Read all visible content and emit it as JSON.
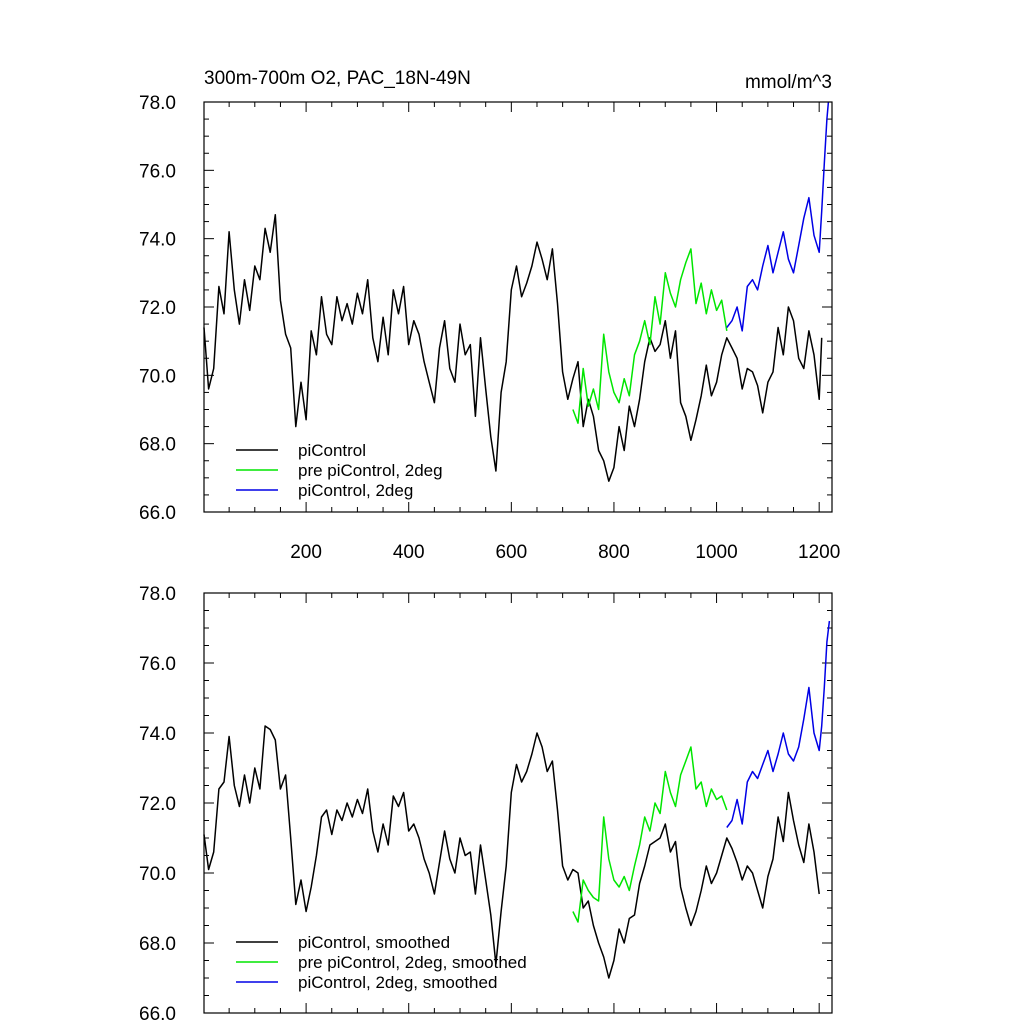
{
  "colors": {
    "piControl": "#000000",
    "pre_piControl_2deg": "#00e600",
    "piControl_2deg": "#0000e6"
  },
  "chart_data": [
    {
      "type": "line",
      "title": "300m-700m O2, PAC_18N-49N",
      "units": "mmol/m^3",
      "xlim": [
        1,
        1225
      ],
      "ylim": [
        66.0,
        78.0
      ],
      "x_ticks": [
        200,
        400,
        600,
        800,
        1000,
        1200
      ],
      "x_tick_labels": [
        "200",
        "400",
        "600",
        "800",
        "1000",
        "1200"
      ],
      "y_ticks": [
        66.0,
        68.0,
        70.0,
        72.0,
        74.0,
        76.0,
        78.0
      ],
      "y_tick_labels": [
        "66.0",
        "68.0",
        "70.0",
        "72.0",
        "74.0",
        "76.0",
        "78.0"
      ],
      "legend": [
        "piControl",
        "pre piControl, 2deg",
        "piControl, 2deg"
      ],
      "series": [
        {
          "name": "piControl",
          "color": "#000000",
          "x": [
            1,
            10,
            20,
            30,
            40,
            50,
            60,
            70,
            80,
            90,
            100,
            110,
            120,
            130,
            140,
            150,
            160,
            170,
            180,
            190,
            200,
            210,
            220,
            230,
            240,
            250,
            260,
            270,
            280,
            290,
            300,
            310,
            320,
            330,
            340,
            350,
            360,
            370,
            380,
            390,
            400,
            410,
            420,
            430,
            440,
            450,
            460,
            470,
            480,
            490,
            500,
            510,
            520,
            530,
            540,
            550,
            560,
            570,
            580,
            590,
            600,
            610,
            620,
            630,
            640,
            650,
            660,
            670,
            680,
            690,
            700,
            710,
            720,
            730,
            740,
            750,
            760,
            770,
            780,
            790,
            800,
            810,
            820,
            830,
            840,
            850,
            860,
            870,
            880,
            890,
            900,
            910,
            920,
            930,
            940,
            950,
            960,
            970,
            980,
            990,
            1000,
            1010,
            1020,
            1030,
            1040,
            1050,
            1060,
            1070,
            1080,
            1090,
            1100,
            1110,
            1120,
            1130,
            1140,
            1150,
            1160,
            1170,
            1180,
            1190,
            1200,
            1205
          ],
          "y": [
            71.4,
            69.6,
            70.2,
            72.6,
            71.8,
            74.2,
            72.5,
            71.5,
            72.8,
            71.9,
            73.2,
            72.8,
            74.3,
            73.6,
            74.7,
            72.2,
            71.2,
            70.8,
            68.5,
            69.8,
            68.7,
            71.3,
            70.6,
            72.3,
            71.2,
            70.9,
            72.3,
            71.6,
            72.1,
            71.5,
            72.4,
            71.8,
            72.8,
            71.1,
            70.4,
            71.7,
            70.6,
            72.5,
            71.8,
            72.6,
            70.9,
            71.6,
            71.2,
            70.4,
            69.8,
            69.2,
            70.8,
            71.6,
            70.2,
            69.8,
            71.5,
            70.6,
            70.9,
            68.8,
            71.1,
            69.6,
            68.2,
            67.2,
            69.5,
            70.4,
            72.5,
            73.2,
            72.3,
            72.7,
            73.2,
            73.9,
            73.4,
            72.8,
            73.7,
            72.1,
            70.1,
            69.3,
            69.9,
            70.4,
            68.5,
            69.3,
            68.8,
            67.8,
            67.5,
            66.9,
            67.3,
            68.5,
            67.8,
            69.1,
            68.5,
            69.3,
            70.4,
            71.1,
            70.7,
            70.9,
            71.6,
            70.5,
            71.3,
            69.2,
            68.8,
            68.1,
            68.7,
            69.4,
            70.3,
            69.4,
            69.8,
            70.6,
            71.1,
            70.8,
            70.5,
            69.6,
            70.2,
            70.1,
            69.7,
            68.9,
            69.8,
            70.1,
            71.4,
            70.6,
            72.0,
            71.6,
            70.5,
            70.2,
            71.3,
            70.6,
            69.3,
            71.1
          ]
        },
        {
          "name": "pre piControl, 2deg",
          "color": "#00e600",
          "x": [
            720,
            730,
            740,
            750,
            760,
            770,
            780,
            790,
            800,
            810,
            820,
            830,
            840,
            850,
            860,
            870,
            880,
            890,
            900,
            910,
            920,
            930,
            940,
            950,
            960,
            970,
            980,
            990,
            1000,
            1010,
            1020
          ],
          "y": [
            69.0,
            68.6,
            70.2,
            69.1,
            69.6,
            69.0,
            71.2,
            70.1,
            69.5,
            69.2,
            69.9,
            69.4,
            70.6,
            71.0,
            71.6,
            70.9,
            72.3,
            71.5,
            73.0,
            72.4,
            72.0,
            72.8,
            73.3,
            73.7,
            72.1,
            72.7,
            71.8,
            72.5,
            71.9,
            72.2,
            71.3
          ]
        },
        {
          "name": "piControl, 2deg",
          "color": "#0000e6",
          "x": [
            1020,
            1030,
            1040,
            1050,
            1060,
            1070,
            1080,
            1090,
            1100,
            1110,
            1120,
            1130,
            1140,
            1150,
            1160,
            1170,
            1180,
            1190,
            1200,
            1205,
            1210,
            1215,
            1218
          ],
          "y": [
            71.4,
            71.6,
            72.0,
            71.3,
            72.6,
            72.8,
            72.5,
            73.2,
            73.8,
            73.0,
            73.6,
            74.2,
            73.4,
            73.0,
            73.8,
            74.6,
            75.2,
            74.1,
            73.6,
            74.8,
            76.2,
            77.5,
            78.0
          ]
        }
      ]
    },
    {
      "type": "line",
      "xlim": [
        1,
        1225
      ],
      "ylim": [
        66.0,
        78.0
      ],
      "y_ticks": [
        66.0,
        68.0,
        70.0,
        72.0,
        74.0,
        76.0,
        78.0
      ],
      "y_tick_labels": [
        "66.0",
        "68.0",
        "70.0",
        "72.0",
        "74.0",
        "76.0",
        "78.0"
      ],
      "legend": [
        "piControl, smoothed",
        "pre piControl, 2deg, smoothed",
        "piControl, 2deg, smoothed"
      ],
      "series": [
        {
          "name": "piControl, smoothed",
          "color": "#000000",
          "x": [
            1,
            10,
            20,
            30,
            40,
            50,
            60,
            70,
            80,
            90,
            100,
            110,
            120,
            130,
            140,
            150,
            160,
            170,
            180,
            190,
            200,
            210,
            220,
            230,
            240,
            250,
            260,
            270,
            280,
            290,
            300,
            310,
            320,
            330,
            340,
            350,
            360,
            370,
            380,
            390,
            400,
            410,
            420,
            430,
            440,
            450,
            460,
            470,
            480,
            490,
            500,
            510,
            520,
            530,
            540,
            550,
            560,
            570,
            580,
            590,
            600,
            610,
            620,
            630,
            640,
            650,
            660,
            670,
            680,
            690,
            700,
            710,
            720,
            730,
            740,
            750,
            760,
            770,
            780,
            790,
            800,
            810,
            820,
            830,
            840,
            850,
            860,
            870,
            880,
            890,
            900,
            910,
            920,
            930,
            940,
            950,
            960,
            970,
            980,
            990,
            1000,
            1010,
            1020,
            1030,
            1040,
            1050,
            1060,
            1070,
            1080,
            1090,
            1100,
            1110,
            1120,
            1130,
            1140,
            1150,
            1160,
            1170,
            1180,
            1190,
            1200
          ],
          "y": [
            71.1,
            70.1,
            70.6,
            72.4,
            72.6,
            73.9,
            72.5,
            71.9,
            72.8,
            72.0,
            73.0,
            72.4,
            74.2,
            74.1,
            73.8,
            72.4,
            72.8,
            71.0,
            69.1,
            69.8,
            68.9,
            69.6,
            70.5,
            71.6,
            71.8,
            71.1,
            71.8,
            71.5,
            72.0,
            71.6,
            72.1,
            71.7,
            72.4,
            71.2,
            70.6,
            71.4,
            70.8,
            72.2,
            71.9,
            72.3,
            71.2,
            71.4,
            71.0,
            70.4,
            70.0,
            69.4,
            70.3,
            71.2,
            70.4,
            70.0,
            71.0,
            70.5,
            70.6,
            69.4,
            70.8,
            69.8,
            68.8,
            67.4,
            68.9,
            70.2,
            72.3,
            73.1,
            72.6,
            72.9,
            73.4,
            74.0,
            73.6,
            72.9,
            73.2,
            71.8,
            70.2,
            69.8,
            70.1,
            70.0,
            69.0,
            69.2,
            68.5,
            68.0,
            67.6,
            67.0,
            67.5,
            68.4,
            68.0,
            68.7,
            68.8,
            69.7,
            70.2,
            70.8,
            70.9,
            71.0,
            71.4,
            70.6,
            70.9,
            69.6,
            69.0,
            68.5,
            68.9,
            69.5,
            70.2,
            69.7,
            70.0,
            70.5,
            71.0,
            70.7,
            70.3,
            69.8,
            70.2,
            70.0,
            69.5,
            69.0,
            69.9,
            70.4,
            71.6,
            70.9,
            72.3,
            71.5,
            70.8,
            70.3,
            71.4,
            70.6,
            69.4
          ]
        },
        {
          "name": "pre piControl, 2deg, smoothed",
          "color": "#00e600",
          "x": [
            720,
            730,
            740,
            750,
            760,
            770,
            780,
            790,
            800,
            810,
            820,
            830,
            840,
            850,
            860,
            870,
            880,
            890,
            900,
            910,
            920,
            930,
            940,
            950,
            960,
            970,
            980,
            990,
            1000,
            1010,
            1020
          ],
          "y": [
            68.9,
            68.6,
            69.8,
            69.5,
            69.3,
            69.2,
            71.6,
            70.4,
            69.8,
            69.6,
            69.9,
            69.5,
            70.2,
            70.8,
            71.6,
            71.2,
            72.0,
            71.7,
            72.9,
            72.3,
            71.9,
            72.8,
            73.2,
            73.6,
            72.4,
            72.6,
            71.9,
            72.4,
            72.1,
            72.2,
            71.8
          ]
        },
        {
          "name": "piControl, 2deg, smoothed",
          "color": "#0000e6",
          "x": [
            1020,
            1030,
            1040,
            1050,
            1060,
            1070,
            1080,
            1090,
            1100,
            1110,
            1120,
            1130,
            1140,
            1150,
            1160,
            1170,
            1180,
            1190,
            1200,
            1205,
            1210,
            1215,
            1220
          ],
          "y": [
            71.3,
            71.5,
            72.1,
            71.4,
            72.6,
            72.9,
            72.7,
            73.1,
            73.5,
            72.9,
            73.4,
            74.0,
            73.4,
            73.2,
            73.6,
            74.4,
            75.3,
            74.0,
            73.5,
            74.2,
            75.3,
            76.6,
            77.2
          ]
        }
      ]
    }
  ]
}
